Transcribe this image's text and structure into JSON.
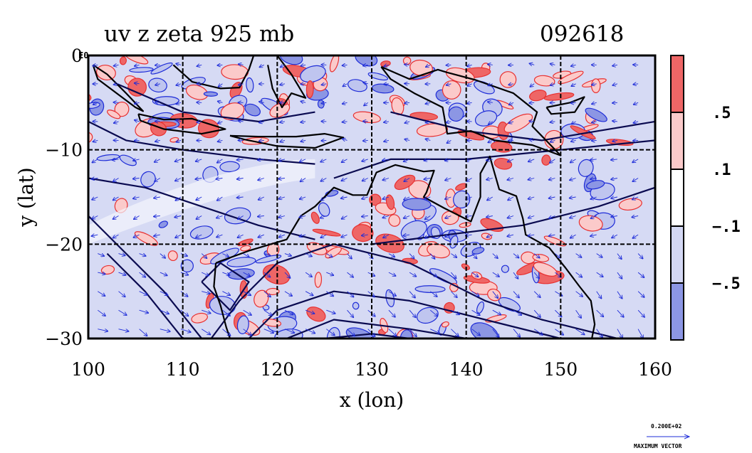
{
  "chart_data": {
    "type": "map",
    "title": "uv z zeta 925 mb",
    "timestamp": "092618",
    "xlabel": "x (lon)",
    "ylabel": "y (lat)",
    "xlim": [
      100,
      160
    ],
    "ylim": [
      -30,
      0
    ],
    "x_ticks": [
      100,
      110,
      120,
      130,
      140,
      150,
      160
    ],
    "x_tick_labels": [
      "100",
      "110",
      "120",
      "130",
      "140",
      "150",
      "160"
    ],
    "y_ticks": [
      0,
      -10,
      -20,
      -30
    ],
    "y_tick_labels": [
      "0",
      "−10",
      "−20",
      "−30"
    ],
    "y_top_extra": "E0",
    "grid": true,
    "colorbar": {
      "labels": [
        ".5",
        ".1",
        "−.1",
        "−.5"
      ],
      "bins": [
        {
          "color": "#ee6666"
        },
        {
          "color": "#fbcaca"
        },
        {
          "color": "#ffffff"
        },
        {
          "color": "#d4d8f4"
        },
        {
          "color": "#8c96e4"
        }
      ]
    },
    "reference_vector": {
      "value_label": "0.200E+02",
      "caption": "MAXIMUM VECTOR"
    },
    "colors": {
      "positive": "#e83030",
      "positive_fill": "#fbcaca",
      "negative": "#1e2cd8",
      "negative_fill": "#d6daf4",
      "contour": "#0a0a50",
      "coast": "#000000"
    }
  }
}
